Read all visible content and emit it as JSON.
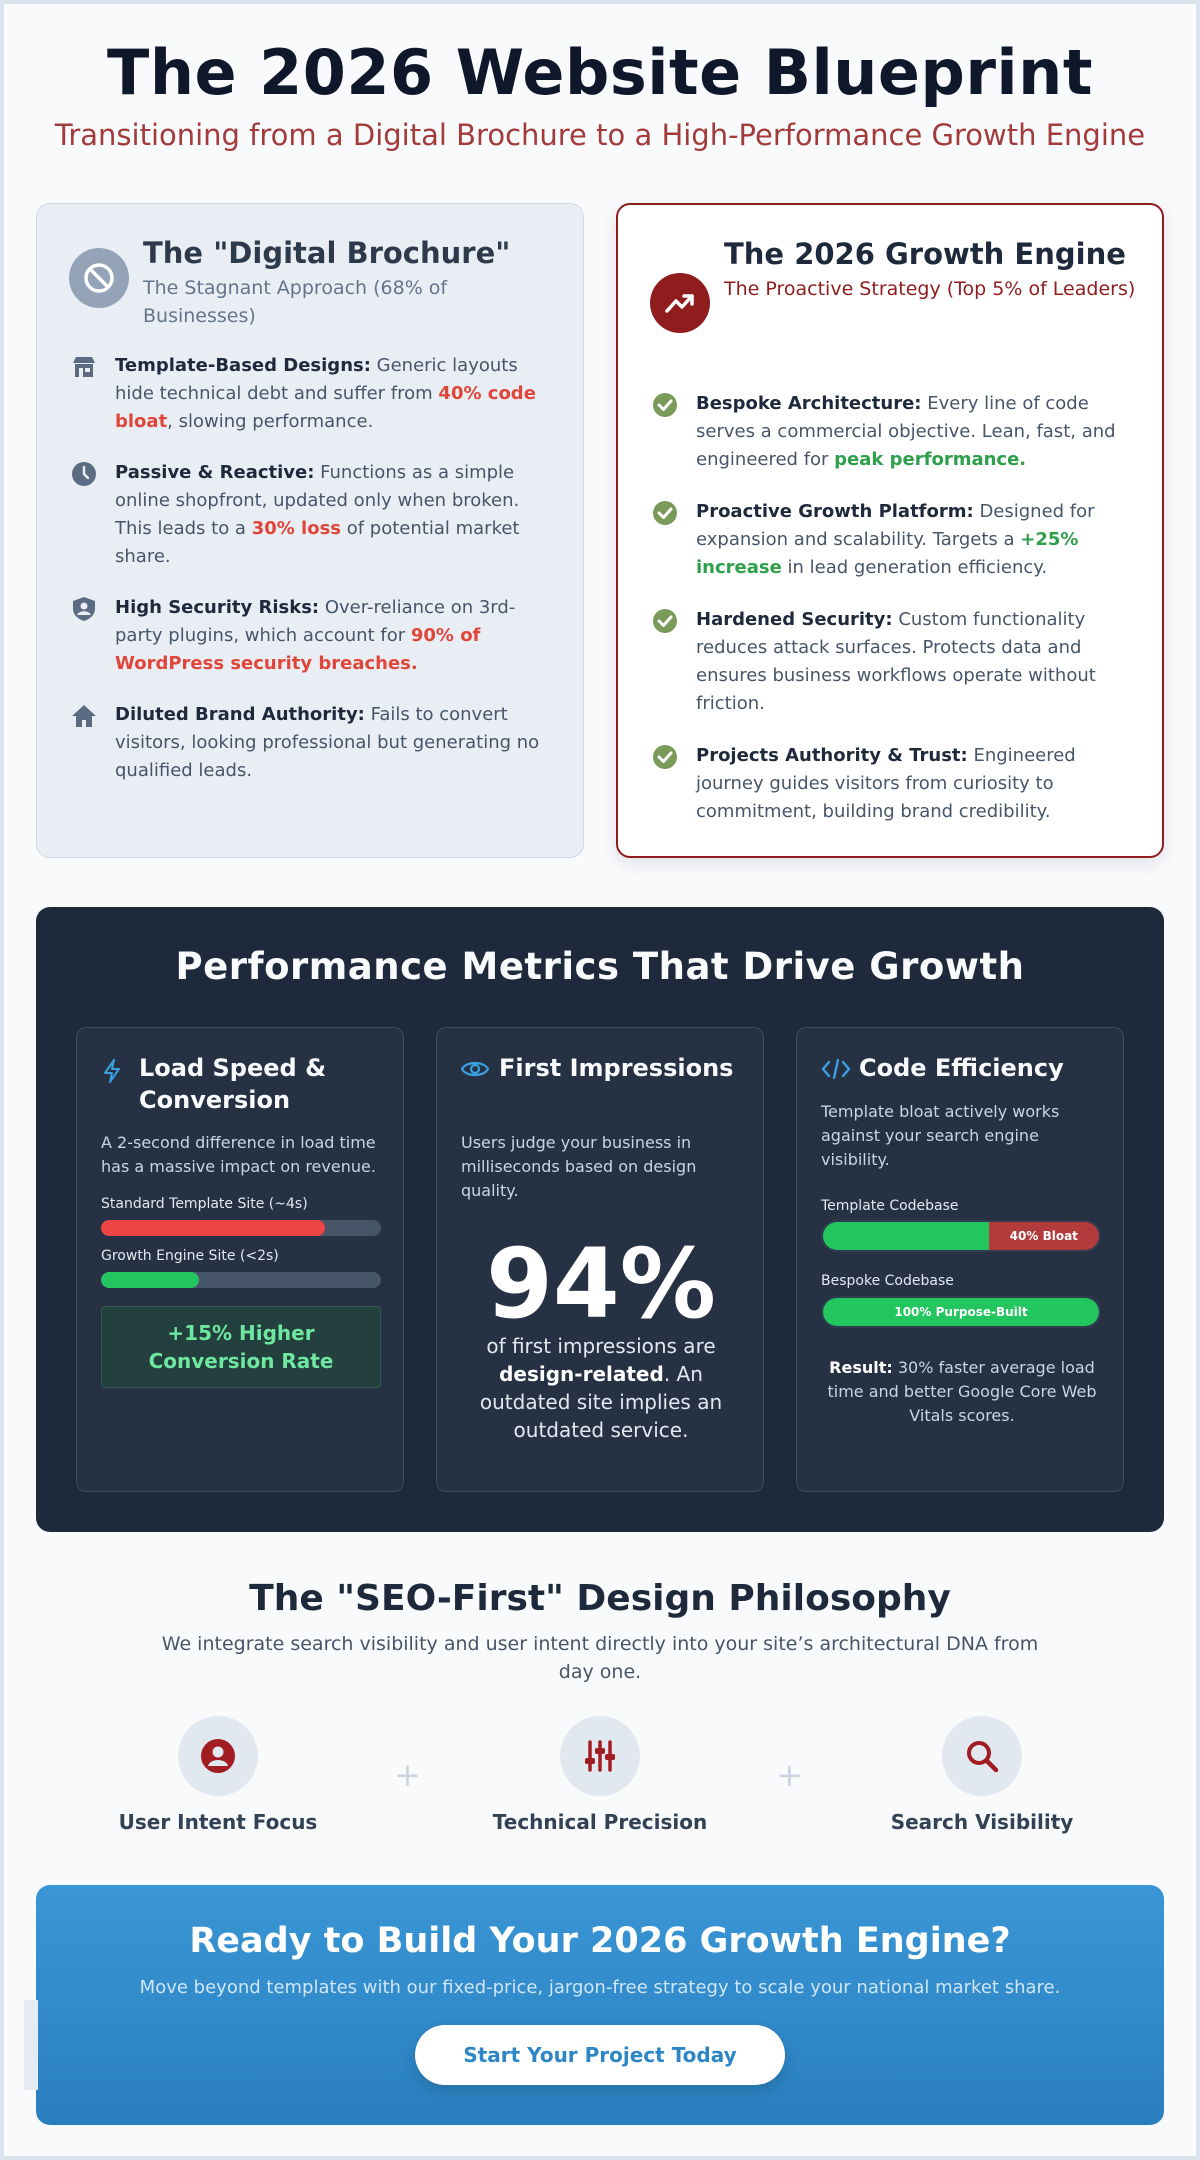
{
  "header": {
    "title": "The 2026 Website Blueprint",
    "subtitle": "Transitioning from a Digital Brochure to a High-Performance Growth Engine"
  },
  "brochure": {
    "title": "The \"Digital Brochure\"",
    "subtitle": "The Stagnant Approach (68% of Businesses)",
    "icon": "ban-icon",
    "items": [
      {
        "icon": "store-icon",
        "heading": "Template-Based Designs:",
        "pre": " Generic layouts hide technical debt and suffer from ",
        "highlight": "40% code bloat",
        "post": ", slowing performance."
      },
      {
        "icon": "clock-icon",
        "heading": "Passive & Reactive:",
        "pre": " Functions as a simple online shopfront, updated only when broken. This leads to a ",
        "highlight": "30% loss",
        "post": " of potential market share."
      },
      {
        "icon": "shield-user-icon",
        "heading": "High Security Risks:",
        "pre": " Over-reliance on 3rd-party plugins, which account for ",
        "highlight": "90% of WordPress security breaches.",
        "post": ""
      },
      {
        "icon": "home-icon",
        "heading": "Diluted Brand Authority:",
        "pre": " Fails to convert visitors, looking professional but generating no qualified leads.",
        "highlight": "",
        "post": ""
      }
    ]
  },
  "engine": {
    "title": "The 2026 Growth Engine",
    "subtitle": "The Proactive Strategy (Top 5% of Leaders)",
    "icon": "trending-up-icon",
    "items": [
      {
        "icon": "check-circle-icon",
        "heading": "Bespoke Architecture:",
        "pre": " Every line of code serves a commercial objective. Lean, fast, and engineered for ",
        "highlight": "peak performance.",
        "post": ""
      },
      {
        "icon": "check-circle-icon",
        "heading": "Proactive Growth Platform:",
        "pre": " Designed for expansion and scalability. Targets a ",
        "highlight": "+25% increase",
        "post": " in lead generation efficiency."
      },
      {
        "icon": "check-circle-icon",
        "heading": "Hardened Security:",
        "pre": " Custom functionality reduces attack surfaces. Protects data and ensures business workflows operate without friction.",
        "highlight": "",
        "post": ""
      },
      {
        "icon": "check-circle-icon",
        "heading": "Projects Authority & Trust:",
        "pre": " Engineered journey guides visitors from curiosity to commitment, building brand credibility.",
        "highlight": "",
        "post": ""
      }
    ]
  },
  "metrics": {
    "title": "Performance Metrics That Drive Growth",
    "speed": {
      "icon": "bolt-icon",
      "title": "Load Speed & Conversion",
      "desc": "A 2-second difference in load time has a massive impact on revenue.",
      "bar1_label": "Standard Template Site (~4s)",
      "bar1_fill": 0.8,
      "bar2_label": "Growth Engine Site (<2s)",
      "bar2_fill": 0.35,
      "callout": "+15% Higher Conversion Rate"
    },
    "impressions": {
      "icon": "eye-icon",
      "title": "First Impressions",
      "desc": "Users judge your business in milliseconds based on design quality.",
      "value": "94%",
      "text_pre": "of first impressions are ",
      "text_bold": "design-related",
      "text_post": ". An outdated site implies an outdated service."
    },
    "code": {
      "icon": "code-icon",
      "title": "Code Efficiency",
      "desc": "Template bloat actively works against your search engine visibility.",
      "bar1_label": "Template Codebase",
      "bar1_fill": 0.6,
      "bar1_tag": "40% Bloat",
      "bar2_label": "Bespoke Codebase",
      "bar2_tag": "100% Purpose-Built",
      "result_label": "Result:",
      "result_text": " 30% faster average load time and better Google Core Web Vitals scores."
    }
  },
  "seo": {
    "title": "The \"SEO-First\" Design Philosophy",
    "desc": "We integrate search visibility and user intent directly into your site’s architectural DNA from day one.",
    "pillars": [
      {
        "icon": "user-circle-icon",
        "label": "User Intent Focus"
      },
      {
        "icon": "sliders-icon",
        "label": "Technical Precision"
      },
      {
        "icon": "search-icon",
        "label": "Search Visibility"
      }
    ],
    "separator": "+"
  },
  "cta": {
    "title": "Ready to Build Your 2026 Growth Engine?",
    "desc": "Move beyond templates with our fixed-price, jargon-free strategy to scale your national market share.",
    "button": "Start Your Project Today"
  },
  "colors": {
    "accent_red": "#8f1d1d",
    "highlight_red": "#e0453a",
    "highlight_green": "#2e9f4a",
    "dark_panel": "#1e293b",
    "cta_blue": "#2d86c6"
  }
}
